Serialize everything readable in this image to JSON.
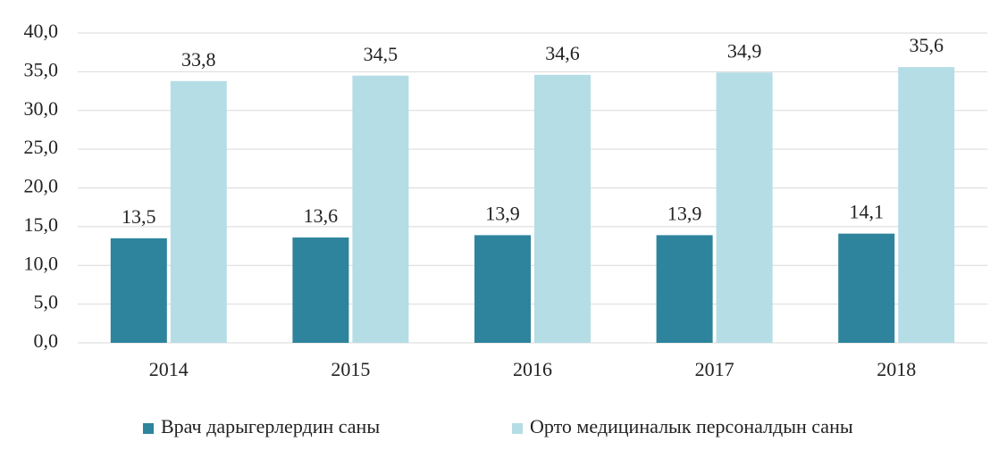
{
  "chart_data": {
    "type": "bar",
    "categories": [
      "2014",
      "2015",
      "2016",
      "2017",
      "2018"
    ],
    "series": [
      {
        "name": "Врач дарыгерлердин саны",
        "color": "#2e849c",
        "values": [
          13.5,
          13.6,
          13.9,
          13.9,
          14.1
        ],
        "value_labels": [
          "13,5",
          "13,6",
          "13,9",
          "13,9",
          "14,1"
        ]
      },
      {
        "name": "Орто медициналык персоналдын саны",
        "color": "#b5dde6",
        "values": [
          33.8,
          34.5,
          34.6,
          34.9,
          35.6
        ],
        "value_labels": [
          "33,8",
          "34,5",
          "34,6",
          "34,9",
          "35,6"
        ]
      }
    ],
    "ylim": [
      0,
      40
    ],
    "yticks": [
      {
        "value": 0,
        "label": "0,0"
      },
      {
        "value": 5,
        "label": "5,0"
      },
      {
        "value": 10,
        "label": "10,0"
      },
      {
        "value": 15,
        "label": "15,0"
      },
      {
        "value": 20,
        "label": "20,0"
      },
      {
        "value": 25,
        "label": "25,0"
      },
      {
        "value": 30,
        "label": "30,0"
      },
      {
        "value": 35,
        "label": "35,0"
      },
      {
        "value": 40,
        "label": "40,0"
      }
    ],
    "grid": true,
    "legend": "bottom"
  }
}
